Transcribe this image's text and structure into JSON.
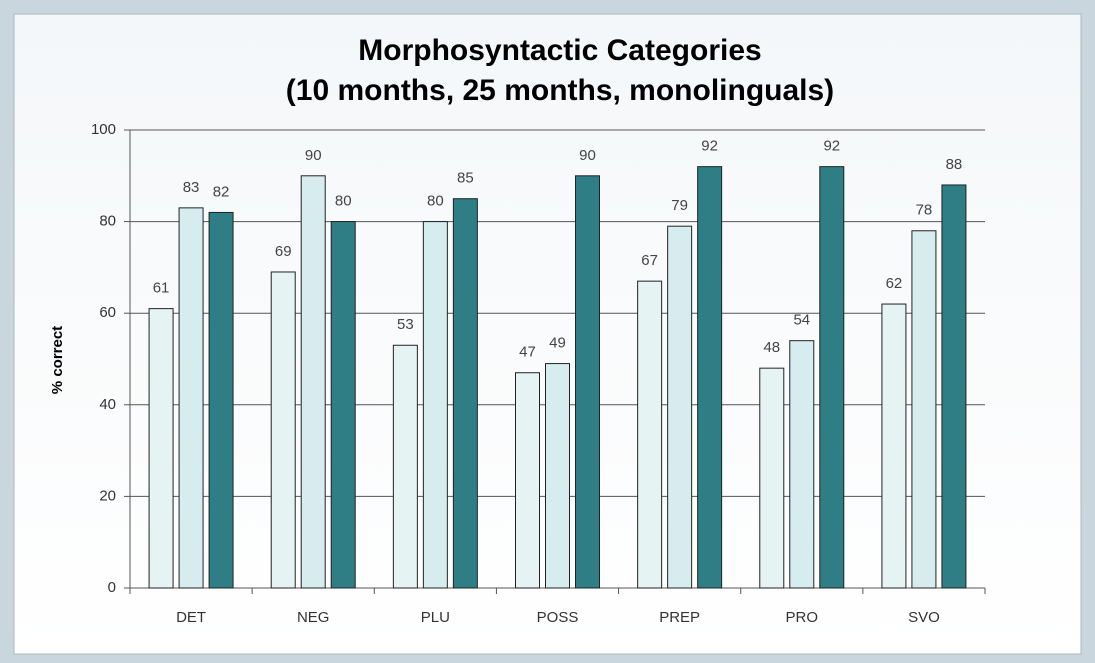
{
  "chart_data": {
    "type": "bar",
    "title": "Morphosyntactic Categories",
    "subtitle": "(10 months, 25 months, monolinguals)",
    "y_label": "% correct",
    "categories": [
      "DET",
      "NEG",
      "PLU",
      "POSS",
      "PREP",
      "PRO",
      "SVO"
    ],
    "series": [
      {
        "color": "#e6f3f3",
        "values": [
          61,
          69,
          53,
          47,
          67,
          48,
          62
        ]
      },
      {
        "color": "#d6ecee",
        "values": [
          83,
          90,
          80,
          49,
          79,
          54,
          78
        ]
      },
      {
        "color": "#2f7d85",
        "values": [
          82,
          80,
          85,
          90,
          92,
          92,
          88
        ]
      }
    ],
    "ylim": [
      0,
      100
    ],
    "yticks": [
      0,
      20,
      40,
      60,
      80,
      100
    ],
    "grid": true
  }
}
